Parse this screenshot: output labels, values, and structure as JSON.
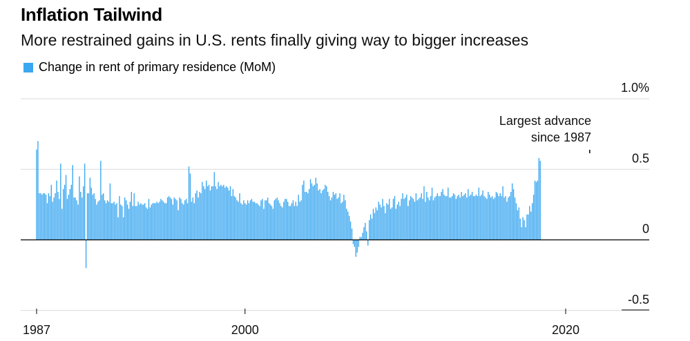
{
  "title": "Inflation Tailwind",
  "subtitle": "More restrained gains in U.S. rents finally giving way to bigger increases",
  "chart_data": {
    "type": "bar",
    "title": "Inflation Tailwind",
    "subtitle": "More restrained gains in U.S. rents finally giving way to bigger increases",
    "series": [
      {
        "name": "Change in rent of primary residence (MoM)",
        "color": "#3ba7f0",
        "x_start": "1987-01",
        "frequency": "monthly",
        "values": [
          0.64,
          0.7,
          0.33,
          0.33,
          0.32,
          0.33,
          0.33,
          0.32,
          0.26,
          0.33,
          0.31,
          0.39,
          0.27,
          0.3,
          0.33,
          0.42,
          0.34,
          0.29,
          0.54,
          0.22,
          0.36,
          0.39,
          0.46,
          0.29,
          0.32,
          0.36,
          0.39,
          0.53,
          0.3,
          0.3,
          0.28,
          0.25,
          0.45,
          0.34,
          0.3,
          0.38,
          0.54,
          -0.2,
          0.33,
          0.33,
          0.44,
          0.37,
          0.32,
          0.33,
          0.29,
          0.25,
          0.27,
          0.28,
          0.56,
          0.32,
          0.33,
          0.28,
          0.26,
          0.28,
          0.27,
          0.4,
          0.26,
          0.26,
          0.27,
          0.25,
          0.26,
          0.16,
          0.31,
          0.25,
          0.24,
          0.16,
          0.3,
          0.28,
          0.25,
          0.22,
          0.27,
          0.34,
          0.24,
          0.33,
          0.24,
          0.24,
          0.27,
          0.25,
          0.26,
          0.25,
          0.25,
          0.26,
          0.23,
          0.22,
          0.29,
          0.23,
          0.25,
          0.26,
          0.26,
          0.26,
          0.27,
          0.26,
          0.27,
          0.29,
          0.28,
          0.27,
          0.26,
          0.26,
          0.3,
          0.31,
          0.3,
          0.29,
          0.25,
          0.3,
          0.29,
          0.28,
          0.21,
          0.3,
          0.29,
          0.26,
          0.25,
          0.28,
          0.29,
          0.26,
          0.52,
          0.47,
          0.27,
          0.3,
          0.26,
          0.33,
          0.35,
          0.3,
          0.34,
          0.33,
          0.41,
          0.38,
          0.36,
          0.42,
          0.38,
          0.39,
          0.35,
          0.38,
          0.38,
          0.48,
          0.38,
          0.36,
          0.41,
          0.38,
          0.39,
          0.38,
          0.39,
          0.37,
          0.38,
          0.37,
          0.35,
          0.38,
          0.31,
          0.36,
          0.31,
          0.3,
          0.28,
          0.27,
          0.33,
          0.26,
          0.25,
          0.28,
          0.26,
          0.25,
          0.28,
          0.26,
          0.28,
          0.29,
          0.27,
          0.27,
          0.26,
          0.26,
          0.25,
          0.24,
          0.28,
          0.29,
          0.22,
          0.28,
          0.28,
          0.3,
          0.26,
          0.25,
          0.24,
          0.22,
          0.28,
          0.29,
          0.3,
          0.28,
          0.26,
          0.24,
          0.23,
          0.27,
          0.29,
          0.29,
          0.27,
          0.24,
          0.24,
          0.26,
          0.28,
          0.24,
          0.27,
          0.24,
          0.32,
          0.27,
          0.28,
          0.39,
          0.42,
          0.34,
          0.34,
          0.33,
          0.36,
          0.43,
          0.4,
          0.38,
          0.39,
          0.44,
          0.4,
          0.35,
          0.36,
          0.33,
          0.35,
          0.36,
          0.39,
          0.38,
          0.34,
          0.31,
          0.28,
          0.3,
          0.34,
          0.32,
          0.33,
          0.29,
          0.3,
          0.33,
          0.26,
          0.27,
          0.32,
          0.28,
          0.22,
          0.2,
          0.17,
          0.13,
          0.08,
          -0.03,
          -0.05,
          -0.12,
          -0.09,
          -0.05,
          0.02,
          0.02,
          0.05,
          0.09,
          0.12,
          0.06,
          -0.04,
          0.14,
          0.18,
          0.15,
          0.22,
          0.19,
          0.23,
          0.21,
          0.27,
          0.25,
          0.23,
          0.29,
          0.24,
          0.19,
          0.26,
          0.25,
          0.29,
          0.22,
          0.23,
          0.29,
          0.31,
          0.22,
          0.25,
          0.27,
          0.24,
          0.29,
          0.33,
          0.29,
          0.3,
          0.32,
          0.24,
          0.28,
          0.31,
          0.3,
          0.29,
          0.27,
          0.33,
          0.28,
          0.29,
          0.3,
          0.33,
          0.29,
          0.38,
          0.27,
          0.34,
          0.3,
          0.28,
          0.31,
          0.37,
          0.28,
          0.3,
          0.31,
          0.33,
          0.31,
          0.31,
          0.34,
          0.36,
          0.32,
          0.31,
          0.31,
          0.37,
          0.3,
          0.3,
          0.31,
          0.33,
          0.32,
          0.29,
          0.31,
          0.32,
          0.3,
          0.34,
          0.31,
          0.32,
          0.33,
          0.3,
          0.36,
          0.31,
          0.32,
          0.34,
          0.31,
          0.31,
          0.32,
          0.31,
          0.37,
          0.31,
          0.32,
          0.35,
          0.31,
          0.3,
          0.29,
          0.34,
          0.32,
          0.3,
          0.31,
          0.29,
          0.3,
          0.34,
          0.33,
          0.31,
          0.33,
          0.31,
          0.38,
          0.3,
          0.31,
          0.27,
          0.3,
          0.31,
          0.34,
          0.4,
          0.36,
          0.3,
          0.26,
          0.21,
          0.23,
          0.15,
          0.09,
          0.16,
          0.14,
          0.09,
          0.18,
          0.18,
          0.24,
          0.2,
          0.26,
          0.32,
          0.42,
          0.41,
          0.42,
          0.58,
          0.56
        ]
      }
    ],
    "xlim": [
      "1987-01",
      "2023-08"
    ],
    "ylim": [
      -0.5,
      1.0
    ],
    "y_ticks": [
      1.0,
      0.5,
      0,
      -0.5
    ],
    "y_tick_labels": [
      "1.0%",
      "0.5",
      "0",
      "-0.5"
    ],
    "x_ticks": [
      1987,
      2000,
      2020
    ],
    "x_tick_labels": [
      "1987",
      "2000",
      "2020"
    ],
    "grid": true,
    "legend_position": "top-left",
    "annotation": {
      "lines": [
        "Largest advance",
        "since 1987"
      ],
      "target_index": 414
    }
  }
}
